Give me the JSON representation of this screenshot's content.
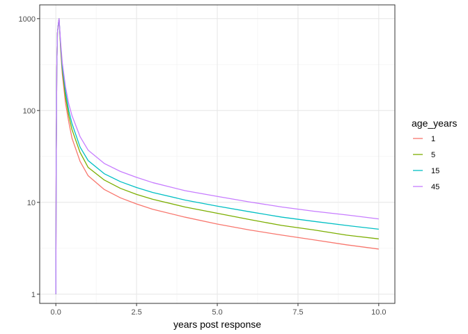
{
  "chart_data": {
    "type": "line",
    "title": "",
    "xlabel": "years post response",
    "ylabel": "",
    "xlim": [
      -0.5,
      10.5
    ],
    "ylim_log10": [
      -0.1,
      3.15
    ],
    "y_scale": "log10",
    "grid": true,
    "x_ticks": [
      0,
      2.5,
      5,
      7.5,
      10
    ],
    "x_tick_labels": [
      "0.0",
      "2.5",
      "5.0",
      "7.5",
      "10.0"
    ],
    "y_ticks": [
      1,
      10,
      100,
      1000
    ],
    "y_tick_labels": [
      "1",
      "10",
      "100",
      "1000"
    ],
    "legend": {
      "title": "age_years",
      "position": "right"
    },
    "series": [
      {
        "name": "1",
        "color": "#F8766D",
        "x": [
          0,
          0.01,
          0.03,
          0.05,
          0.08,
          0.1,
          0.15,
          0.2,
          0.3,
          0.4,
          0.5,
          0.75,
          1,
          1.5,
          2,
          2.5,
          3,
          4,
          5,
          6,
          7,
          8,
          9,
          10
        ],
        "y": [
          1,
          20,
          300,
          700,
          900,
          1000,
          450,
          250,
          120,
          75,
          50,
          28,
          19.5,
          13.8,
          11.2,
          9.6,
          8.4,
          6.9,
          5.8,
          5.0,
          4.4,
          3.9,
          3.45,
          3.1
        ]
      },
      {
        "name": "5",
        "color": "#7CAE00",
        "x": [
          0,
          0.01,
          0.03,
          0.05,
          0.08,
          0.1,
          0.15,
          0.2,
          0.3,
          0.4,
          0.5,
          0.75,
          1,
          1.5,
          2,
          2.5,
          3,
          4,
          5,
          6,
          7,
          8,
          9,
          10
        ],
        "y": [
          1,
          20,
          300,
          700,
          900,
          1000,
          480,
          280,
          140,
          88,
          62,
          35,
          24,
          17.5,
          14.2,
          12.2,
          10.8,
          8.9,
          7.6,
          6.5,
          5.6,
          5.0,
          4.4,
          4.0
        ]
      },
      {
        "name": "15",
        "color": "#00BFC4",
        "x": [
          0,
          0.01,
          0.03,
          0.05,
          0.08,
          0.1,
          0.15,
          0.2,
          0.3,
          0.4,
          0.5,
          0.75,
          1,
          1.5,
          2,
          2.5,
          3,
          4,
          5,
          6,
          7,
          8,
          9,
          10
        ],
        "y": [
          1,
          20,
          300,
          700,
          900,
          1000,
          510,
          300,
          160,
          100,
          72,
          40,
          28.5,
          20.5,
          16.8,
          14.5,
          12.8,
          10.6,
          9.1,
          7.9,
          6.9,
          6.2,
          5.6,
          5.1
        ]
      },
      {
        "name": "45",
        "color": "#C77CFF",
        "x": [
          0,
          0.01,
          0.03,
          0.05,
          0.08,
          0.1,
          0.15,
          0.2,
          0.3,
          0.4,
          0.5,
          0.75,
          1,
          1.5,
          2,
          2.5,
          3,
          4,
          5,
          6,
          7,
          8,
          9,
          10
        ],
        "y": [
          1,
          20,
          300,
          700,
          900,
          1000,
          540,
          330,
          180,
          118,
          88,
          52,
          37,
          26.5,
          21.7,
          18.7,
          16.4,
          13.4,
          11.6,
          10.1,
          8.9,
          8.0,
          7.3,
          6.6
        ]
      }
    ]
  }
}
